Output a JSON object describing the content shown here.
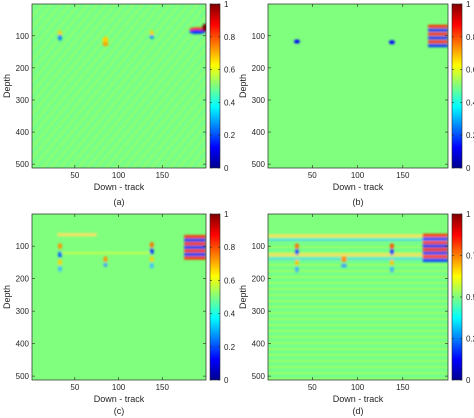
{
  "chart_data": [
    {
      "type": "heatmap",
      "panel_label": "(a)",
      "xlabel": "Down - track",
      "ylabel": "Depth",
      "xticks": [
        50,
        100,
        150
      ],
      "yticks": [
        100,
        200,
        300,
        400,
        500
      ],
      "xlim": [
        1,
        200
      ],
      "ylim": [
        512,
        1
      ],
      "colorbar": {
        "range": [
          0,
          1
        ],
        "ticks": [
          "0",
          "0.2",
          "0.4",
          "0.6",
          "0.8",
          "1"
        ],
        "colormap": "jet"
      },
      "background_value": 0.5,
      "features": [
        {
          "x": 33,
          "y": 100,
          "value": "low/high"
        },
        {
          "x": 85,
          "y": 120,
          "value": "low/high"
        },
        {
          "x": 138,
          "y": 100,
          "value": "low/high"
        },
        {
          "x": 195,
          "y": 75,
          "value": "high"
        }
      ]
    },
    {
      "type": "heatmap",
      "panel_label": "(b)",
      "xlabel": "Down - track",
      "ylabel": "Depth",
      "xticks": [
        50,
        100,
        150
      ],
      "yticks": [
        100,
        200,
        300,
        400,
        500
      ],
      "xlim": [
        1,
        200
      ],
      "ylim": [
        512,
        1
      ],
      "colorbar": {
        "range": [
          0,
          1
        ],
        "ticks": [
          "0",
          "0.2",
          "0.4",
          "0.6",
          "0.8",
          "1"
        ],
        "colormap": "jet"
      },
      "background_value": 0.5,
      "features": [
        {
          "x": 33,
          "y": 118,
          "value": "low"
        },
        {
          "x": 138,
          "y": 120,
          "value": "low"
        },
        {
          "x": 195,
          "y": 90,
          "value": "high/low bands"
        }
      ]
    },
    {
      "type": "heatmap",
      "panel_label": "(c)",
      "xlabel": "Down - track",
      "ylabel": "Depth",
      "xticks": [
        50,
        100,
        150
      ],
      "yticks": [
        100,
        200,
        300,
        400,
        500
      ],
      "xlim": [
        1,
        200
      ],
      "ylim": [
        512,
        1
      ],
      "colorbar": {
        "range": [
          0,
          1
        ],
        "ticks": [
          "0",
          "0.2",
          "0.4",
          "0.6",
          "0.8",
          "1"
        ],
        "colormap": "jet"
      },
      "background_value": 0.5,
      "features": [
        {
          "x": 33,
          "y": 130,
          "value": "low/high"
        },
        {
          "x": 85,
          "y": 130,
          "value": "low/high"
        },
        {
          "x": 138,
          "y": 120,
          "value": "low/high"
        },
        {
          "x": 190,
          "y": 95,
          "value": "high/low bands"
        }
      ]
    },
    {
      "type": "heatmap",
      "panel_label": "(d)",
      "xlabel": "Down - track",
      "ylabel": "Depth",
      "xticks": [
        50,
        100,
        150
      ],
      "yticks": [
        100,
        200,
        300,
        400,
        500
      ],
      "xlim": [
        1,
        200
      ],
      "ylim": [
        512,
        1
      ],
      "colorbar": {
        "range": [
          0,
          1
        ],
        "ticks": [
          "0",
          "0.25",
          "0.5",
          "0.75",
          "1"
        ],
        "colormap": "jet"
      },
      "background_value": 0.5,
      "features": [
        {
          "x": 33,
          "y": 110,
          "value": "low/high"
        },
        {
          "x": 85,
          "y": 140,
          "value": "low/high"
        },
        {
          "x": 138,
          "y": 120,
          "value": "low/high"
        },
        {
          "x": 190,
          "y": 95,
          "value": "high/low bands"
        }
      ]
    }
  ]
}
